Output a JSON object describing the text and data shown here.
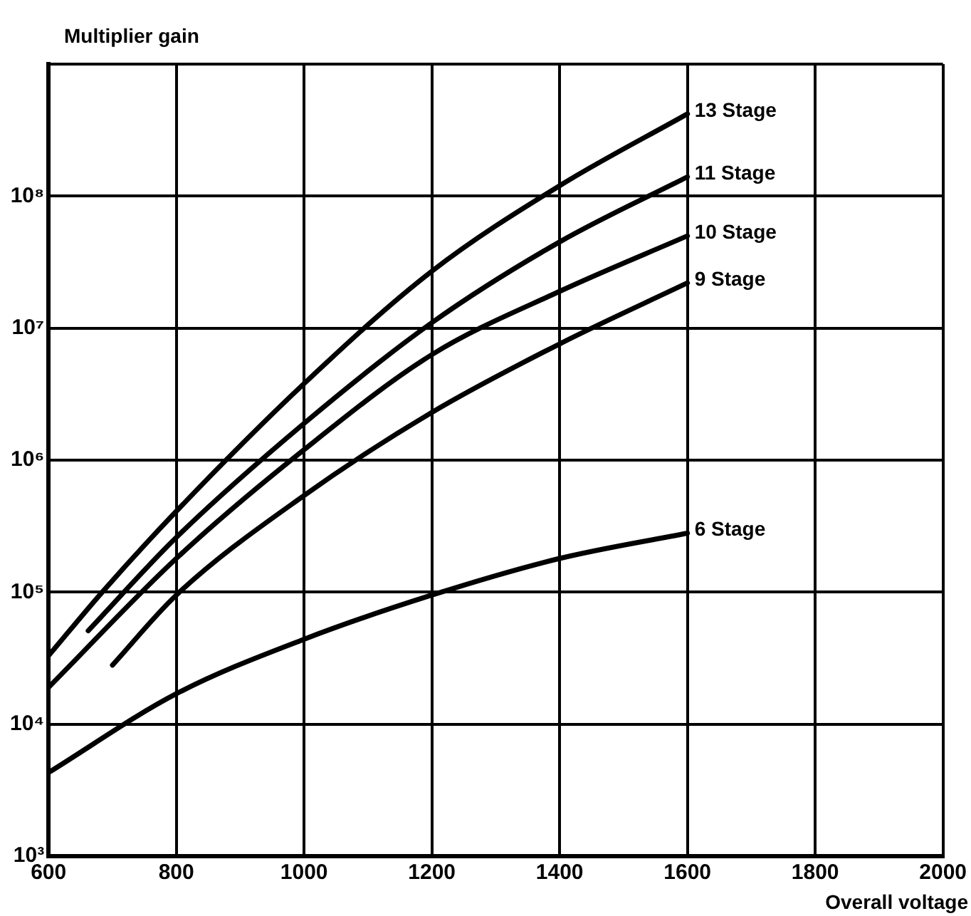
{
  "chart_data": {
    "type": "line",
    "ylabel": "Multiplier gain",
    "xlabel": "Overall voltage",
    "log": "y",
    "grid": true,
    "legend": false,
    "marker": "none",
    "line_style": "solid",
    "xlim": [
      600,
      2000
    ],
    "xticks": [
      600,
      800,
      1000,
      1200,
      1400,
      1600,
      1800,
      2000
    ],
    "ylim": [
      1000,
      1000000000
    ],
    "yticks": [
      {
        "value": 1000,
        "label": "10³"
      },
      {
        "value": 10000,
        "label": "10⁴"
      },
      {
        "value": 100000,
        "label": "10⁵"
      },
      {
        "value": 1000000,
        "label": "10⁶"
      },
      {
        "value": 10000000,
        "label": "10⁷"
      },
      {
        "value": 100000000,
        "label": "10⁸"
      },
      {
        "value": 1000000000,
        "label": null
      }
    ],
    "series": [
      {
        "name": "13 Stage",
        "color": "#000000",
        "x": [
          600,
          684,
          800,
          1000,
          1200,
          1400,
          1600
        ],
        "values": [
          33000,
          100000,
          410000,
          3800000,
          27000000,
          120000000,
          420000000
        ]
      },
      {
        "name": "11 Stage",
        "color": "#000000",
        "x": [
          662,
          800,
          1000,
          1200,
          1400,
          1600
        ],
        "values": [
          51000,
          260000,
          1900000,
          11000000,
          45000000,
          140000000
        ]
      },
      {
        "name": "10 Stage",
        "color": "#000000",
        "x": [
          600,
          800,
          1000,
          1200,
          1400,
          1600
        ],
        "values": [
          19000,
          180000,
          1200000,
          6300000,
          19000000,
          50000000
        ]
      },
      {
        "name": "9 Stage",
        "color": "#000000",
        "x": [
          700,
          800,
          1000,
          1200,
          1400,
          1600
        ],
        "values": [
          28000,
          95000,
          540000,
          2300000,
          7600000,
          22000000
        ]
      },
      {
        "name": "6 Stage",
        "color": "#000000",
        "x": [
          600,
          800,
          1000,
          1200,
          1400,
          1600
        ],
        "values": [
          4300,
          17000,
          44000,
          95000,
          180000,
          280000
        ]
      }
    ]
  }
}
